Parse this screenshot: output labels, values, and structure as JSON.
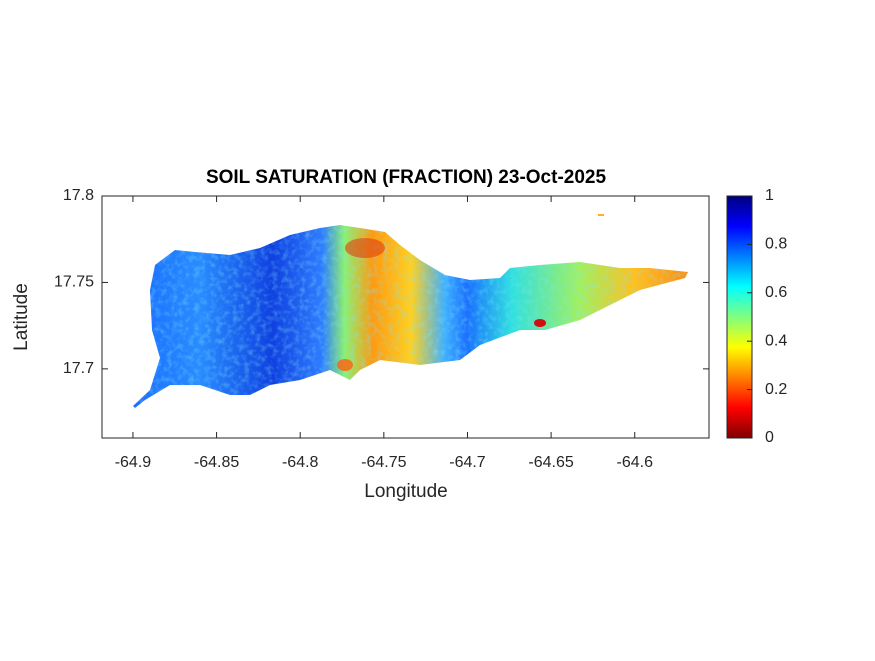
{
  "chart_data": {
    "type": "map",
    "title": "SOIL SATURATION (FRACTION) 23-Oct-2025",
    "x_label": "Longitude",
    "y_label": "Latitude",
    "xlim": [
      -64.9185,
      -64.5556
    ],
    "xticks": [
      -64.9,
      -64.85,
      -64.8,
      -64.75,
      -64.7,
      -64.65,
      -64.6
    ],
    "ylim": [
      17.66,
      17.8
    ],
    "yticks": [
      17.7,
      17.75,
      17.8
    ],
    "colormap": "jet",
    "clim": [
      0,
      1
    ],
    "cticks": [
      0,
      0.2,
      0.4,
      0.6,
      0.8,
      1
    ],
    "grid": false
  }
}
